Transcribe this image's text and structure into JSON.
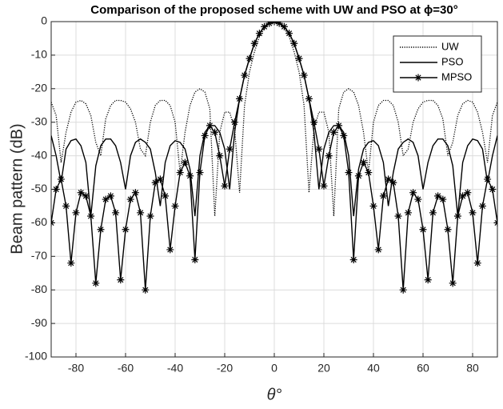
{
  "chart_data": {
    "type": "line",
    "title": "Comparison of the proposed scheme with UW and PSO  at ϕ=30°",
    "x_label": "θ°",
    "y_label": "Beam pattern (dB)",
    "x": [
      -90,
      -88,
      -86,
      -84,
      -82,
      -80,
      -78,
      -76,
      -74,
      -72,
      -70,
      -68,
      -66,
      -64,
      -62,
      -60,
      -58,
      -56,
      -54,
      -52,
      -50,
      -48,
      -46,
      -44,
      -42,
      -40,
      -38,
      -36,
      -34,
      -32,
      -30,
      -28,
      -26,
      -24,
      -22,
      -20,
      -18,
      -16,
      -14,
      -12,
      -10,
      -8,
      -6,
      -4,
      -2,
      0,
      2,
      4,
      6,
      8,
      10,
      12,
      14,
      16,
      18,
      20,
      22,
      24,
      26,
      28,
      30,
      32,
      34,
      36,
      38,
      40,
      42,
      44,
      46,
      48,
      50,
      52,
      54,
      56,
      58,
      60,
      62,
      64,
      66,
      68,
      70,
      72,
      74,
      76,
      78,
      80,
      82,
      84,
      86,
      88,
      90
    ],
    "series": [
      {
        "name": "UW",
        "color": "#000000",
        "linestyle": "dotted",
        "values": [
          -24,
          -28,
          -42,
          -33,
          -27,
          -24,
          -23.5,
          -24.5,
          -28,
          -36,
          -40,
          -29,
          -25,
          -23.5,
          -23.5,
          -24,
          -26,
          -30,
          -38,
          -40,
          -30,
          -25,
          -23.5,
          -23.5,
          -25,
          -30,
          -45,
          -33,
          -25,
          -21,
          -20,
          -21,
          -26,
          -58,
          -33,
          -27,
          -27,
          -32,
          -51,
          -25,
          -15,
          -9,
          -4.5,
          -2,
          -0.5,
          0,
          -0.5,
          -2,
          -4.5,
          -9,
          -15,
          -25,
          -51,
          -32,
          -27,
          -27,
          -33,
          -58,
          -26,
          -21,
          -20,
          -21,
          -25,
          -33,
          -45,
          -30,
          -25,
          -23.5,
          -23.5,
          -25,
          -30,
          -40,
          -38,
          -30,
          -26,
          -24,
          -23.5,
          -23.5,
          -25,
          -29,
          -40,
          -36,
          -28,
          -24.5,
          -23.5,
          -24,
          -27,
          -33,
          -42,
          -28,
          -24
        ]
      },
      {
        "name": "PSO",
        "color": "#000000",
        "linestyle": "solid",
        "values": [
          -34,
          -40,
          -48,
          -38,
          -35.5,
          -35,
          -37,
          -42,
          -58,
          -43,
          -37,
          -35,
          -35,
          -37,
          -42,
          -50,
          -40,
          -36,
          -35,
          -36,
          -38,
          -45,
          -55,
          -42,
          -37,
          -35.5,
          -36,
          -38,
          -44,
          -58,
          -40,
          -33,
          -31,
          -31,
          -33,
          -38,
          -50,
          -33,
          -23,
          -16,
          -11,
          -6.5,
          -3.5,
          -1.5,
          -0.5,
          0,
          -0.5,
          -1.5,
          -3.5,
          -6.5,
          -11,
          -16,
          -23,
          -33,
          -50,
          -38,
          -33,
          -31,
          -31,
          -33,
          -40,
          -58,
          -44,
          -38,
          -36,
          -35.5,
          -37,
          -42,
          -55,
          -45,
          -38,
          -36,
          -35,
          -36,
          -40,
          -50,
          -42,
          -37,
          -35,
          -35,
          -37,
          -43,
          -58,
          -42,
          -37,
          -35,
          -35.5,
          -38,
          -48,
          -40,
          -34
        ]
      },
      {
        "name": "MPSO",
        "color": "#000000",
        "linestyle": "solid",
        "marker": "*",
        "values": [
          -60,
          -50,
          -47,
          -55,
          -72,
          -57,
          -51,
          -52,
          -58,
          -78,
          -62,
          -53,
          -52,
          -57,
          -77,
          -62,
          -53,
          -51,
          -57,
          -80,
          -58,
          -48,
          -47,
          -52,
          -68,
          -55,
          -45,
          -42,
          -46,
          -71,
          -45,
          -34,
          -31,
          -33,
          -40,
          -49,
          -38,
          -30,
          -23,
          -16,
          -11,
          -6.5,
          -3.5,
          -1.5,
          -0.5,
          0,
          -0.5,
          -1.5,
          -3.5,
          -6.5,
          -11,
          -16,
          -23,
          -30,
          -38,
          -49,
          -40,
          -33,
          -31,
          -34,
          -45,
          -71,
          -46,
          -42,
          -45,
          -55,
          -68,
          -52,
          -47,
          -48,
          -58,
          -80,
          -57,
          -51,
          -53,
          -62,
          -77,
          -57,
          -52,
          -53,
          -62,
          -78,
          -58,
          -52,
          -51,
          -57,
          -72,
          -55,
          -47,
          -50,
          -60
        ]
      }
    ],
    "xlim": [
      -90,
      90
    ],
    "ylim": [
      -100,
      0
    ],
    "xticks": [
      -80,
      -60,
      -40,
      -20,
      0,
      20,
      40,
      60,
      80
    ],
    "yticks": [
      -100,
      -90,
      -80,
      -70,
      -60,
      -50,
      -40,
      -30,
      -20,
      -10,
      0
    ],
    "grid": true,
    "legend": "upper right"
  }
}
